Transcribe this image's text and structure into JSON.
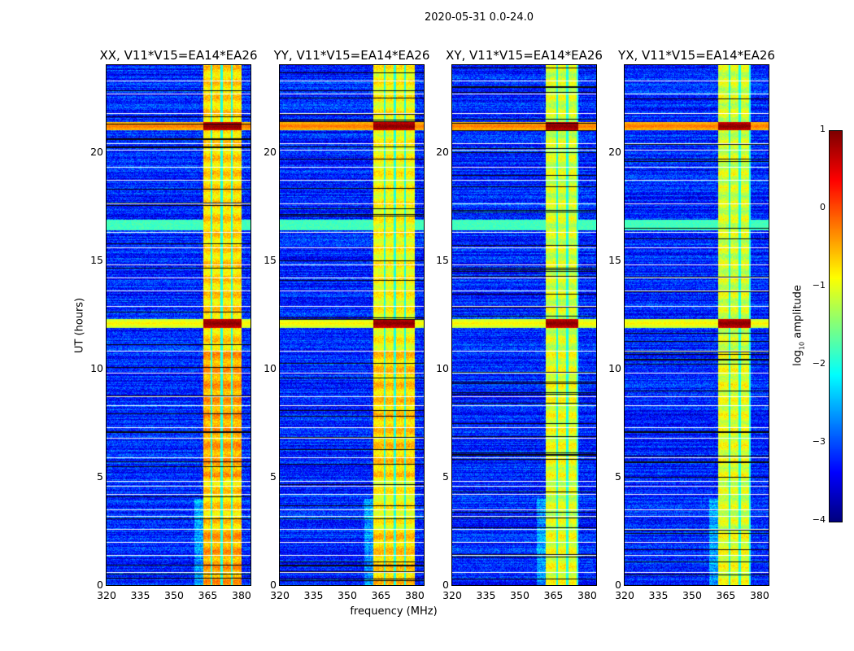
{
  "chart_data": {
    "type": "heatmap",
    "title": "2020-05-31 0.0-24.0",
    "xlabel": "frequency (MHz)",
    "ylabel": "UT (hours)",
    "xlim": [
      320,
      384
    ],
    "ylim": [
      0,
      24
    ],
    "xticks": [
      "320",
      "335",
      "350",
      "365",
      "380"
    ],
    "xtick_values": [
      320,
      335,
      350,
      365,
      380
    ],
    "yticks": [
      "0",
      "5",
      "10",
      "15",
      "20"
    ],
    "ytick_values": [
      0,
      5,
      10,
      15,
      20
    ],
    "panels": [
      {
        "title": "XX, V11*V15=EA14*EA26",
        "band_start_mhz": 363,
        "band_end_mhz": 380,
        "band_level": -0.7
      },
      {
        "title": "YY, V11*V15=EA14*EA26",
        "band_start_mhz": 361.5,
        "band_end_mhz": 380,
        "band_level": -0.9
      },
      {
        "title": "XY, V11*V15=EA14*EA26",
        "band_start_mhz": 361.5,
        "band_end_mhz": 376,
        "band_level": -1.1
      },
      {
        "title": "YX, V11*V15=EA14*EA26",
        "band_start_mhz": 361.5,
        "band_end_mhz": 376,
        "band_level": -1.1
      }
    ],
    "background_level": -3.2,
    "strong_rfi_hours": [
      21.2,
      12.1
    ],
    "flagged_rows_hours": [
      23.3,
      22.7,
      21.8,
      20.4,
      20.1,
      19.3,
      18.7,
      17.6,
      16.3,
      15.6,
      14.8,
      14.2,
      13.6,
      12.9,
      10.8,
      9.8,
      8.7,
      8.3,
      7.3,
      6.8,
      5.9,
      4.8,
      4.6,
      4.2,
      3.5,
      3.2,
      2.6,
      2.0,
      1.4,
      0.6
    ],
    "colorbar": {
      "label": "log",
      "label_sub": "10",
      "label_rest": " amplitude",
      "range": [
        -4,
        1
      ],
      "ticks": [
        "1",
        "0",
        "−1",
        "−2",
        "−3",
        "−4"
      ],
      "tick_values": [
        1,
        0,
        -1,
        -2,
        -3,
        -4
      ],
      "colormap": "jet"
    }
  }
}
